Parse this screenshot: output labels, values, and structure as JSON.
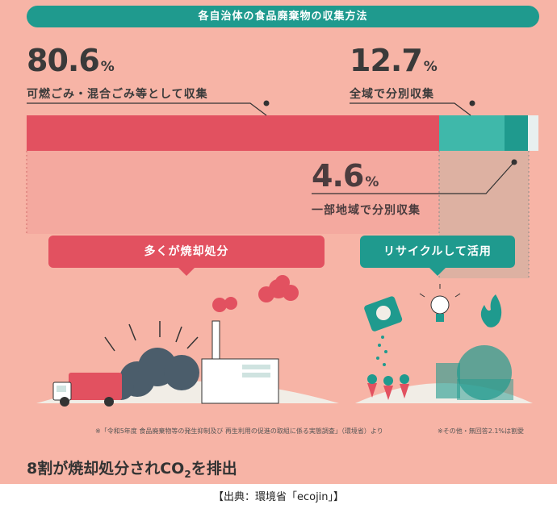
{
  "title": "各自治体の食品廃棄物の収集方法",
  "chart_data": {
    "type": "bar",
    "orientation": "horizontal-stacked",
    "segments": [
      {
        "value": 80.6,
        "unit": "%",
        "label": "可燃ごみ・混合ごみ等として収集",
        "color": "#e25160"
      },
      {
        "value": 12.7,
        "unit": "%",
        "label": "全域で分別収集",
        "color": "#3fb8aa"
      },
      {
        "value": 4.6,
        "unit": "%",
        "label": "一部地域で分別収集",
        "color": "#1f9a8e"
      },
      {
        "value": 2.1,
        "unit": "%",
        "label": "その他・無回答",
        "color": "#e8f0ef"
      }
    ]
  },
  "callouts": {
    "left": {
      "label": "多くが焼却処分",
      "color": "#e25160"
    },
    "right": {
      "label": "リサイクルして活用",
      "color": "#1f9a8e"
    }
  },
  "notes": {
    "survey": "※「令和5年度 食品廃棄物等の発生抑制及び 再生利用の促進の取組に係る実態調査」（環境省）より",
    "other": "※その他・無回答2.1%は割愛"
  },
  "headline": {
    "before": "8割が焼却処分されCO",
    "sub": "2",
    "after": "を排出"
  },
  "source": "【出典：環境省「ecojin」】",
  "colors": {
    "background": "#f7b4a6",
    "teal": "#1f9a8e",
    "red": "#e25160"
  }
}
